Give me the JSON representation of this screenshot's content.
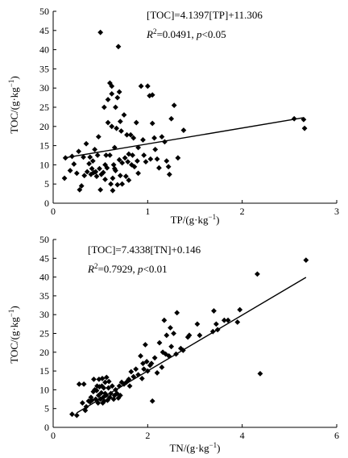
{
  "chart_data": [
    {
      "type": "scatter",
      "xlabel": "TP/(g·kg",
      "xlabel_sup": "−1",
      "xlabel_close": ")",
      "ylabel": "TOC/(g·kg",
      "ylabel_sup": "−1",
      "ylabel_close": ")",
      "xlim": [
        0,
        3
      ],
      "ylim": [
        0,
        50
      ],
      "xticks": [
        "0",
        "1",
        "2",
        "3"
      ],
      "yticks": [
        "0",
        "5",
        "10",
        "15",
        "20",
        "25",
        "30",
        "35",
        "40",
        "45",
        "50"
      ],
      "equation": "[TOC]=4.1397[TP]+11.306",
      "r2_symbol": "R",
      "r2_sup": "2",
      "r2_value": "=0.0491, ",
      "p_symbol": "p",
      "p_value": "<0.05",
      "trendline": {
        "slope": 4.1397,
        "intercept": 11.306,
        "x_range": [
          0.13,
          2.65
        ]
      },
      "points": [
        [
          0.12,
          6.5
        ],
        [
          0.13,
          11.8
        ],
        [
          0.18,
          8.5
        ],
        [
          0.2,
          12.2
        ],
        [
          0.22,
          10.2
        ],
        [
          0.25,
          7.8
        ],
        [
          0.27,
          13.5
        ],
        [
          0.28,
          3.5
        ],
        [
          0.3,
          4.5
        ],
        [
          0.32,
          12.0
        ],
        [
          0.33,
          7.2
        ],
        [
          0.35,
          15.5
        ],
        [
          0.36,
          8.2
        ],
        [
          0.38,
          10.3
        ],
        [
          0.39,
          12.0
        ],
        [
          0.4,
          7.5
        ],
        [
          0.41,
          9.0
        ],
        [
          0.42,
          11.0
        ],
        [
          0.43,
          8.0
        ],
        [
          0.44,
          14.0
        ],
        [
          0.45,
          8.2
        ],
        [
          0.46,
          7.0
        ],
        [
          0.47,
          12.5
        ],
        [
          0.48,
          17.3
        ],
        [
          0.49,
          9.0
        ],
        [
          0.5,
          44.5
        ],
        [
          0.5,
          3.5
        ],
        [
          0.51,
          7.5
        ],
        [
          0.53,
          8.0
        ],
        [
          0.54,
          25.0
        ],
        [
          0.55,
          10.0
        ],
        [
          0.55,
          6.2
        ],
        [
          0.56,
          12.5
        ],
        [
          0.57,
          9.2
        ],
        [
          0.58,
          27.0
        ],
        [
          0.58,
          21.0
        ],
        [
          0.6,
          31.3
        ],
        [
          0.6,
          12.5
        ],
        [
          0.61,
          5.0
        ],
        [
          0.62,
          30.5
        ],
        [
          0.62,
          28.5
        ],
        [
          0.62,
          20.0
        ],
        [
          0.63,
          6.5
        ],
        [
          0.63,
          3.3
        ],
        [
          0.64,
          10.0
        ],
        [
          0.65,
          14.5
        ],
        [
          0.65,
          9.0
        ],
        [
          0.66,
          25.0
        ],
        [
          0.66,
          8.5
        ],
        [
          0.67,
          19.5
        ],
        [
          0.68,
          27.5
        ],
        [
          0.68,
          4.8
        ],
        [
          0.69,
          40.8
        ],
        [
          0.7,
          29.0
        ],
        [
          0.7,
          11.3
        ],
        [
          0.71,
          21.3
        ],
        [
          0.71,
          7.2
        ],
        [
          0.72,
          18.8
        ],
        [
          0.73,
          10.5
        ],
        [
          0.73,
          5.0
        ],
        [
          0.75,
          23.0
        ],
        [
          0.76,
          11.8
        ],
        [
          0.77,
          7.0
        ],
        [
          0.78,
          17.8
        ],
        [
          0.79,
          10.8
        ],
        [
          0.8,
          12.8
        ],
        [
          0.8,
          6.0
        ],
        [
          0.82,
          17.8
        ],
        [
          0.83,
          10.0
        ],
        [
          0.84,
          12.5
        ],
        [
          0.85,
          17.0
        ],
        [
          0.86,
          9.5
        ],
        [
          0.88,
          21.0
        ],
        [
          0.89,
          11.0
        ],
        [
          0.9,
          14.5
        ],
        [
          0.9,
          7.8
        ],
        [
          0.93,
          30.5
        ],
        [
          0.95,
          16.5
        ],
        [
          0.96,
          12.5
        ],
        [
          0.98,
          10.8
        ],
        [
          1.0,
          30.5
        ],
        [
          1.02,
          28.0
        ],
        [
          1.03,
          11.5
        ],
        [
          1.05,
          28.2
        ],
        [
          1.05,
          20.8
        ],
        [
          1.07,
          17.0
        ],
        [
          1.08,
          14.0
        ],
        [
          1.1,
          11.5
        ],
        [
          1.12,
          9.2
        ],
        [
          1.15,
          17.3
        ],
        [
          1.18,
          16.0
        ],
        [
          1.2,
          11.0
        ],
        [
          1.22,
          9.5
        ],
        [
          1.23,
          7.5
        ],
        [
          1.25,
          22.0
        ],
        [
          1.28,
          25.5
        ],
        [
          1.32,
          11.8
        ],
        [
          1.38,
          19.0
        ],
        [
          2.55,
          22.0
        ],
        [
          2.65,
          21.8
        ],
        [
          2.66,
          19.5
        ]
      ]
    },
    {
      "type": "scatter",
      "xlabel": "TN/(g·kg",
      "xlabel_sup": "−1",
      "xlabel_close": ")",
      "ylabel": "TOC/(g·kg",
      "ylabel_sup": "−1",
      "ylabel_close": ")",
      "xlim": [
        0,
        6
      ],
      "ylim": [
        0,
        50
      ],
      "xticks": [
        "0",
        "2",
        "4",
        "6"
      ],
      "yticks": [
        "0",
        "5",
        "10",
        "15",
        "20",
        "25",
        "30",
        "35",
        "40",
        "45",
        "50"
      ],
      "equation": "[TOC]=7.4338[TN]+0.146",
      "r2_symbol": "R",
      "r2_sup": "2",
      "r2_value": "=0.7929, ",
      "p_symbol": "p",
      "p_value": "<0.01",
      "trendline": {
        "slope": 7.4338,
        "intercept": 0.146,
        "x_range": [
          0.5,
          5.35
        ]
      },
      "points": [
        [
          0.4,
          3.5
        ],
        [
          0.5,
          3.2
        ],
        [
          0.55,
          11.5
        ],
        [
          0.62,
          6.5
        ],
        [
          0.65,
          11.5
        ],
        [
          0.68,
          4.5
        ],
        [
          0.7,
          5.5
        ],
        [
          0.75,
          7.0
        ],
        [
          0.78,
          6.8
        ],
        [
          0.8,
          8.0
        ],
        [
          0.82,
          7.2
        ],
        [
          0.85,
          9.5
        ],
        [
          0.86,
          12.8
        ],
        [
          0.88,
          10.0
        ],
        [
          0.9,
          7.5
        ],
        [
          0.92,
          9.8
        ],
        [
          0.93,
          11.0
        ],
        [
          0.95,
          6.5
        ],
        [
          0.96,
          8.5
        ],
        [
          0.97,
          12.8
        ],
        [
          0.98,
          10.8
        ],
        [
          1.0,
          7.5
        ],
        [
          1.02,
          9.2
        ],
        [
          1.03,
          11.0
        ],
        [
          1.04,
          13.0
        ],
        [
          1.05,
          6.5
        ],
        [
          1.06,
          8.0
        ],
        [
          1.07,
          10.5
        ],
        [
          1.08,
          7.0
        ],
        [
          1.1,
          12.0
        ],
        [
          1.1,
          9.0
        ],
        [
          1.12,
          8.5
        ],
        [
          1.13,
          13.3
        ],
        [
          1.15,
          7.2
        ],
        [
          1.17,
          10.5
        ],
        [
          1.18,
          12.2
        ],
        [
          1.2,
          8.0
        ],
        [
          1.22,
          9.0
        ],
        [
          1.25,
          11.0
        ],
        [
          1.28,
          7.5
        ],
        [
          1.3,
          8.5
        ],
        [
          1.32,
          10.0
        ],
        [
          1.35,
          9.0
        ],
        [
          1.38,
          7.8
        ],
        [
          1.4,
          11.0
        ],
        [
          1.42,
          8.5
        ],
        [
          1.45,
          12.0
        ],
        [
          1.5,
          11.5
        ],
        [
          1.55,
          12.0
        ],
        [
          1.6,
          12.8
        ],
        [
          1.62,
          11.0
        ],
        [
          1.65,
          14.8
        ],
        [
          1.7,
          13.5
        ],
        [
          1.75,
          15.5
        ],
        [
          1.8,
          14.0
        ],
        [
          1.85,
          19.0
        ],
        [
          1.88,
          13.0
        ],
        [
          1.9,
          17.0
        ],
        [
          1.92,
          15.5
        ],
        [
          1.95,
          22.0
        ],
        [
          1.98,
          17.5
        ],
        [
          2.0,
          15.0
        ],
        [
          2.05,
          16.5
        ],
        [
          2.08,
          17.0
        ],
        [
          2.1,
          7.0
        ],
        [
          2.15,
          18.5
        ],
        [
          2.2,
          14.5
        ],
        [
          2.25,
          22.5
        ],
        [
          2.3,
          16.0
        ],
        [
          2.32,
          20.0
        ],
        [
          2.35,
          28.5
        ],
        [
          2.38,
          19.5
        ],
        [
          2.4,
          24.5
        ],
        [
          2.45,
          19.0
        ],
        [
          2.48,
          26.5
        ],
        [
          2.5,
          21.5
        ],
        [
          2.55,
          25.0
        ],
        [
          2.6,
          19.5
        ],
        [
          2.62,
          30.5
        ],
        [
          2.7,
          21.0
        ],
        [
          2.75,
          20.5
        ],
        [
          2.85,
          24.0
        ],
        [
          2.88,
          24.5
        ],
        [
          3.05,
          27.5
        ],
        [
          3.1,
          24.5
        ],
        [
          3.38,
          25.5
        ],
        [
          3.4,
          31.0
        ],
        [
          3.45,
          27.5
        ],
        [
          3.48,
          26.0
        ],
        [
          3.62,
          28.5
        ],
        [
          3.7,
          28.5
        ],
        [
          3.9,
          28.0
        ],
        [
          3.95,
          31.3
        ],
        [
          4.32,
          40.8
        ],
        [
          4.38,
          14.3
        ],
        [
          5.35,
          44.5
        ]
      ]
    }
  ]
}
